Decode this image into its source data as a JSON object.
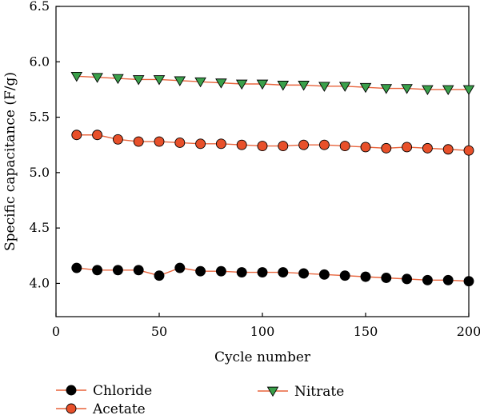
{
  "chart_data": {
    "type": "line",
    "xlabel": "Cycle number",
    "ylabel": "Specific capacitance (F/g)",
    "xlim": [
      0,
      200
    ],
    "ylim": [
      3.7,
      6.5
    ],
    "xticks": [
      0,
      50,
      100,
      150,
      200
    ],
    "yticks": [
      4.0,
      4.5,
      5.0,
      5.5,
      6.0,
      6.5
    ],
    "xtick_labels": [
      "0",
      "50",
      "100",
      "150",
      "200"
    ],
    "ytick_labels": [
      "4.0",
      "4.5",
      "5.0",
      "5.5",
      "6.0",
      "6.5"
    ],
    "grid": false,
    "legend_position": "bottom",
    "x": [
      10,
      20,
      30,
      40,
      50,
      60,
      70,
      80,
      90,
      100,
      110,
      120,
      130,
      140,
      150,
      160,
      170,
      180,
      190,
      200
    ],
    "series": [
      {
        "name": "Chloride",
        "marker": "circle",
        "marker_color": "#000000",
        "line_color": "#e8643c",
        "values": [
          4.14,
          4.12,
          4.12,
          4.12,
          4.07,
          4.14,
          4.11,
          4.11,
          4.1,
          4.1,
          4.1,
          4.09,
          4.08,
          4.07,
          4.06,
          4.05,
          4.04,
          4.03,
          4.03,
          4.02
        ]
      },
      {
        "name": "Acetate",
        "marker": "circle",
        "marker_color": "#e8502a",
        "line_color": "#e8643c",
        "values": [
          5.34,
          5.34,
          5.3,
          5.28,
          5.28,
          5.27,
          5.26,
          5.26,
          5.25,
          5.24,
          5.24,
          5.25,
          5.25,
          5.24,
          5.23,
          5.22,
          5.23,
          5.22,
          5.21,
          5.2
        ]
      },
      {
        "name": "Nitrate",
        "marker": "triangle-down",
        "marker_color": "#3aa04a",
        "line_color": "#e8643c",
        "values": [
          5.87,
          5.86,
          5.85,
          5.84,
          5.84,
          5.83,
          5.82,
          5.81,
          5.8,
          5.8,
          5.79,
          5.79,
          5.78,
          5.78,
          5.77,
          5.76,
          5.76,
          5.75,
          5.75,
          5.75
        ]
      }
    ]
  }
}
